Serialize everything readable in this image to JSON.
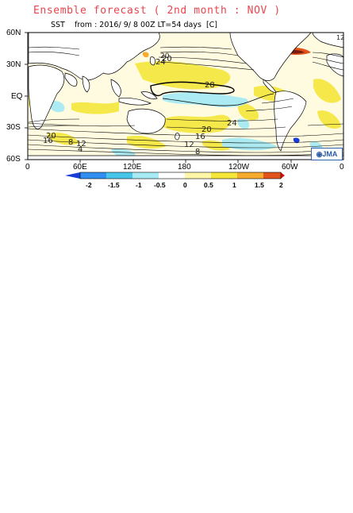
{
  "title": "Ensemble forecast ( 2nd month : NOV )",
  "subtitle": "SST    from : 2016/ 9/ 8 00Z LT=54 days  [C]",
  "map": {
    "lat_labels": [
      "60N",
      "30N",
      "EQ",
      "30S",
      "60S"
    ],
    "lon_labels": [
      "0",
      "60E",
      "120E",
      "180",
      "120W",
      "60W",
      "0"
    ],
    "contour_labels": [
      "20",
      "24",
      "28",
      "24",
      "20",
      "16",
      "12",
      "8",
      "20",
      "16",
      "8",
      "12",
      "4",
      "20",
      "12"
    ],
    "logo": "JMA"
  },
  "colorbar": {
    "labels": [
      "-2",
      "-1.5",
      "-1",
      "-0.5",
      "0",
      "0.5",
      "1",
      "1.5",
      "2"
    ],
    "colors": [
      "#1a3cd6",
      "#2f8ef0",
      "#47c6ea",
      "#a8eaf4",
      "#ffffff",
      "#fff6a8",
      "#f5e63a",
      "#f6aa2e",
      "#e2531b",
      "#d21414"
    ]
  }
}
